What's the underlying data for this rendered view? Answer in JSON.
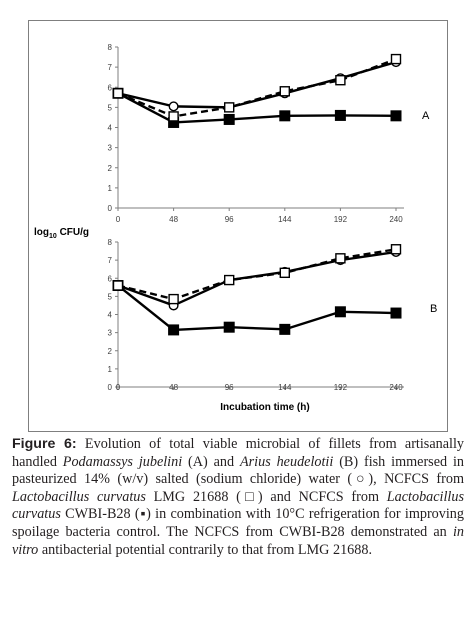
{
  "chart_data": [
    {
      "type": "line",
      "panel_label": "A",
      "x": [
        0,
        48,
        96,
        144,
        192,
        240
      ],
      "x_tick_labels": [
        "0",
        "48",
        "96",
        "144",
        "192",
        "240"
      ],
      "xlim": [
        0,
        240
      ],
      "ylim": [
        0,
        8
      ],
      "y_ticks": [
        "0",
        "1",
        "2",
        "3",
        "4",
        "5",
        "6",
        "7",
        "8"
      ],
      "ylabel": "log10 CFU/g",
      "xlabel": "",
      "grid": false,
      "series": [
        {
          "marker": "open-circle",
          "line": "solid",
          "values": [
            5.7,
            5.05,
            5.0,
            5.7,
            6.45,
            7.25
          ]
        },
        {
          "marker": "open-square",
          "line": "dashed",
          "values": [
            5.7,
            4.55,
            5.0,
            5.8,
            6.35,
            7.4
          ]
        },
        {
          "marker": "filled-square",
          "line": "solid",
          "values": [
            5.7,
            4.25,
            4.4,
            4.58,
            4.6,
            4.58
          ]
        }
      ]
    },
    {
      "type": "line",
      "panel_label": "B",
      "x": [
        0,
        48,
        96,
        144,
        192,
        240
      ],
      "x_tick_labels": [
        "0",
        "48",
        "96",
        "144",
        "192",
        "240"
      ],
      "xlim": [
        0,
        240
      ],
      "ylim": [
        0,
        8
      ],
      "y_ticks": [
        "0",
        "1",
        "2",
        "3",
        "4",
        "5",
        "6",
        "7",
        "8"
      ],
      "xlabel": "Incubation time (h)",
      "grid": false,
      "series": [
        {
          "marker": "open-circle",
          "line": "solid",
          "values": [
            5.6,
            4.5,
            5.9,
            6.35,
            7.0,
            7.45
          ]
        },
        {
          "marker": "open-square",
          "line": "dashed",
          "values": [
            5.6,
            4.85,
            5.9,
            6.3,
            7.1,
            7.6
          ]
        },
        {
          "marker": "filled-square",
          "line": "solid",
          "values": [
            5.6,
            3.15,
            3.3,
            3.18,
            4.15,
            4.08
          ]
        }
      ]
    }
  ],
  "ylabel_parts": {
    "prefix": "log",
    "subscript": "10",
    "suffix": " CFU/g"
  },
  "caption": {
    "lead": "Figure 6:",
    "p1": " Evolution of total viable microbial of fillets from artisanally handled ",
    "i1": "Podamassys jubelini",
    "p2": " (A) and ",
    "i2": "Arius heudelotii",
    "p3": " (B) fish immersed in pasteurized 14% (w/v) salted (sodium chloride) water (○), NCFCS from ",
    "i3": "Lactobacillus curvatus",
    "p4": " LMG 21688 (□) and NCFCS from ",
    "i4": "Lactobacillus curvatus",
    "p5": " CWBI-B28 (▪) in combination with 10°C refrigeration for improving spoilage bacteria control. The NCFCS from CWBI-B28 demonstrated an ",
    "i5": "in vitro",
    "p6": " antibacterial potential contrarily to that from LMG 21688."
  },
  "colors": {
    "series": "#000000",
    "axis": "#7f7f7f",
    "text": "#231f20"
  }
}
